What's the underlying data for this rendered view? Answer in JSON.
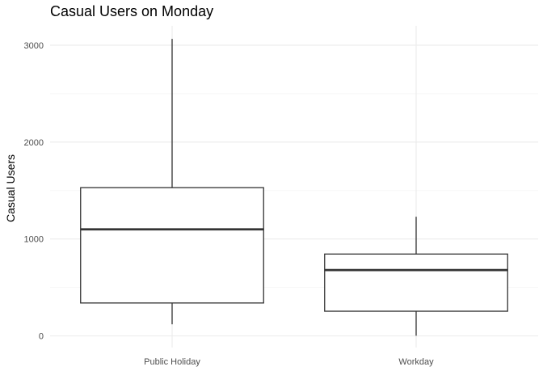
{
  "chart_data": {
    "type": "boxplot",
    "title": "Casual Users on Monday",
    "xlabel": "",
    "ylabel": "Casual Users",
    "categories": [
      "Public Holiday",
      "Workday"
    ],
    "boxes": [
      {
        "category": "Public Holiday",
        "min": 120,
        "q1": 340,
        "median": 1100,
        "q3": 1530,
        "max": 3065
      },
      {
        "category": "Workday",
        "min": 2,
        "q1": 255,
        "median": 680,
        "q3": 845,
        "max": 1230
      }
    ],
    "ylim": [
      -120,
      3200
    ],
    "yticks": [
      0,
      1000,
      2000,
      3000
    ],
    "ytick_labels": [
      "0",
      "1000",
      "2000",
      "3000"
    ],
    "grid": true,
    "legend": "none"
  }
}
